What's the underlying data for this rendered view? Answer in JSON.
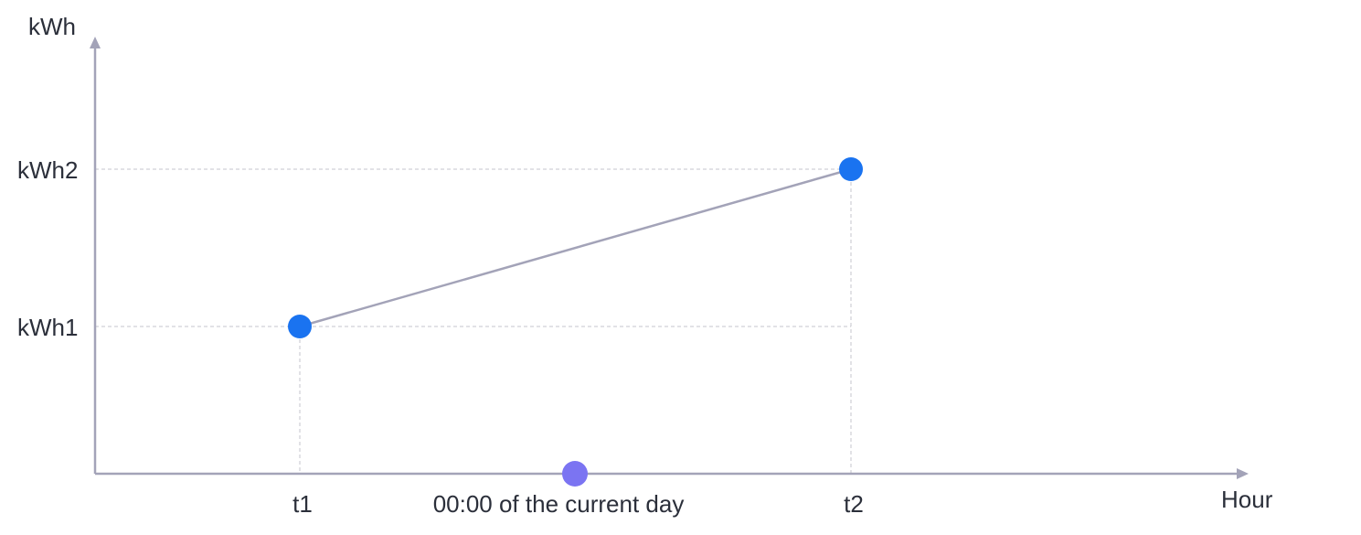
{
  "chart_data": {
    "type": "line",
    "xlabel": "Hour",
    "ylabel": "kWh",
    "x_ticks": [
      "t1",
      "00:00 of the current day",
      "t2"
    ],
    "y_ticks": [
      "kWh1",
      "kWh2"
    ],
    "series": [
      {
        "points": [
          {
            "x": "t1",
            "y": "kWh1"
          },
          {
            "x": "t2",
            "y": "kWh2"
          }
        ]
      }
    ],
    "marker": {
      "x": "00:00 of the current day",
      "y": 0
    },
    "grid": false,
    "legend": "none",
    "colors": {
      "axis": "#a3a3b8",
      "series_line": "#a3a3b8",
      "guide": "#c4c4cc",
      "point": "#1a73f0",
      "marker": "#7b74f2",
      "text": "#2b2f3a"
    }
  }
}
